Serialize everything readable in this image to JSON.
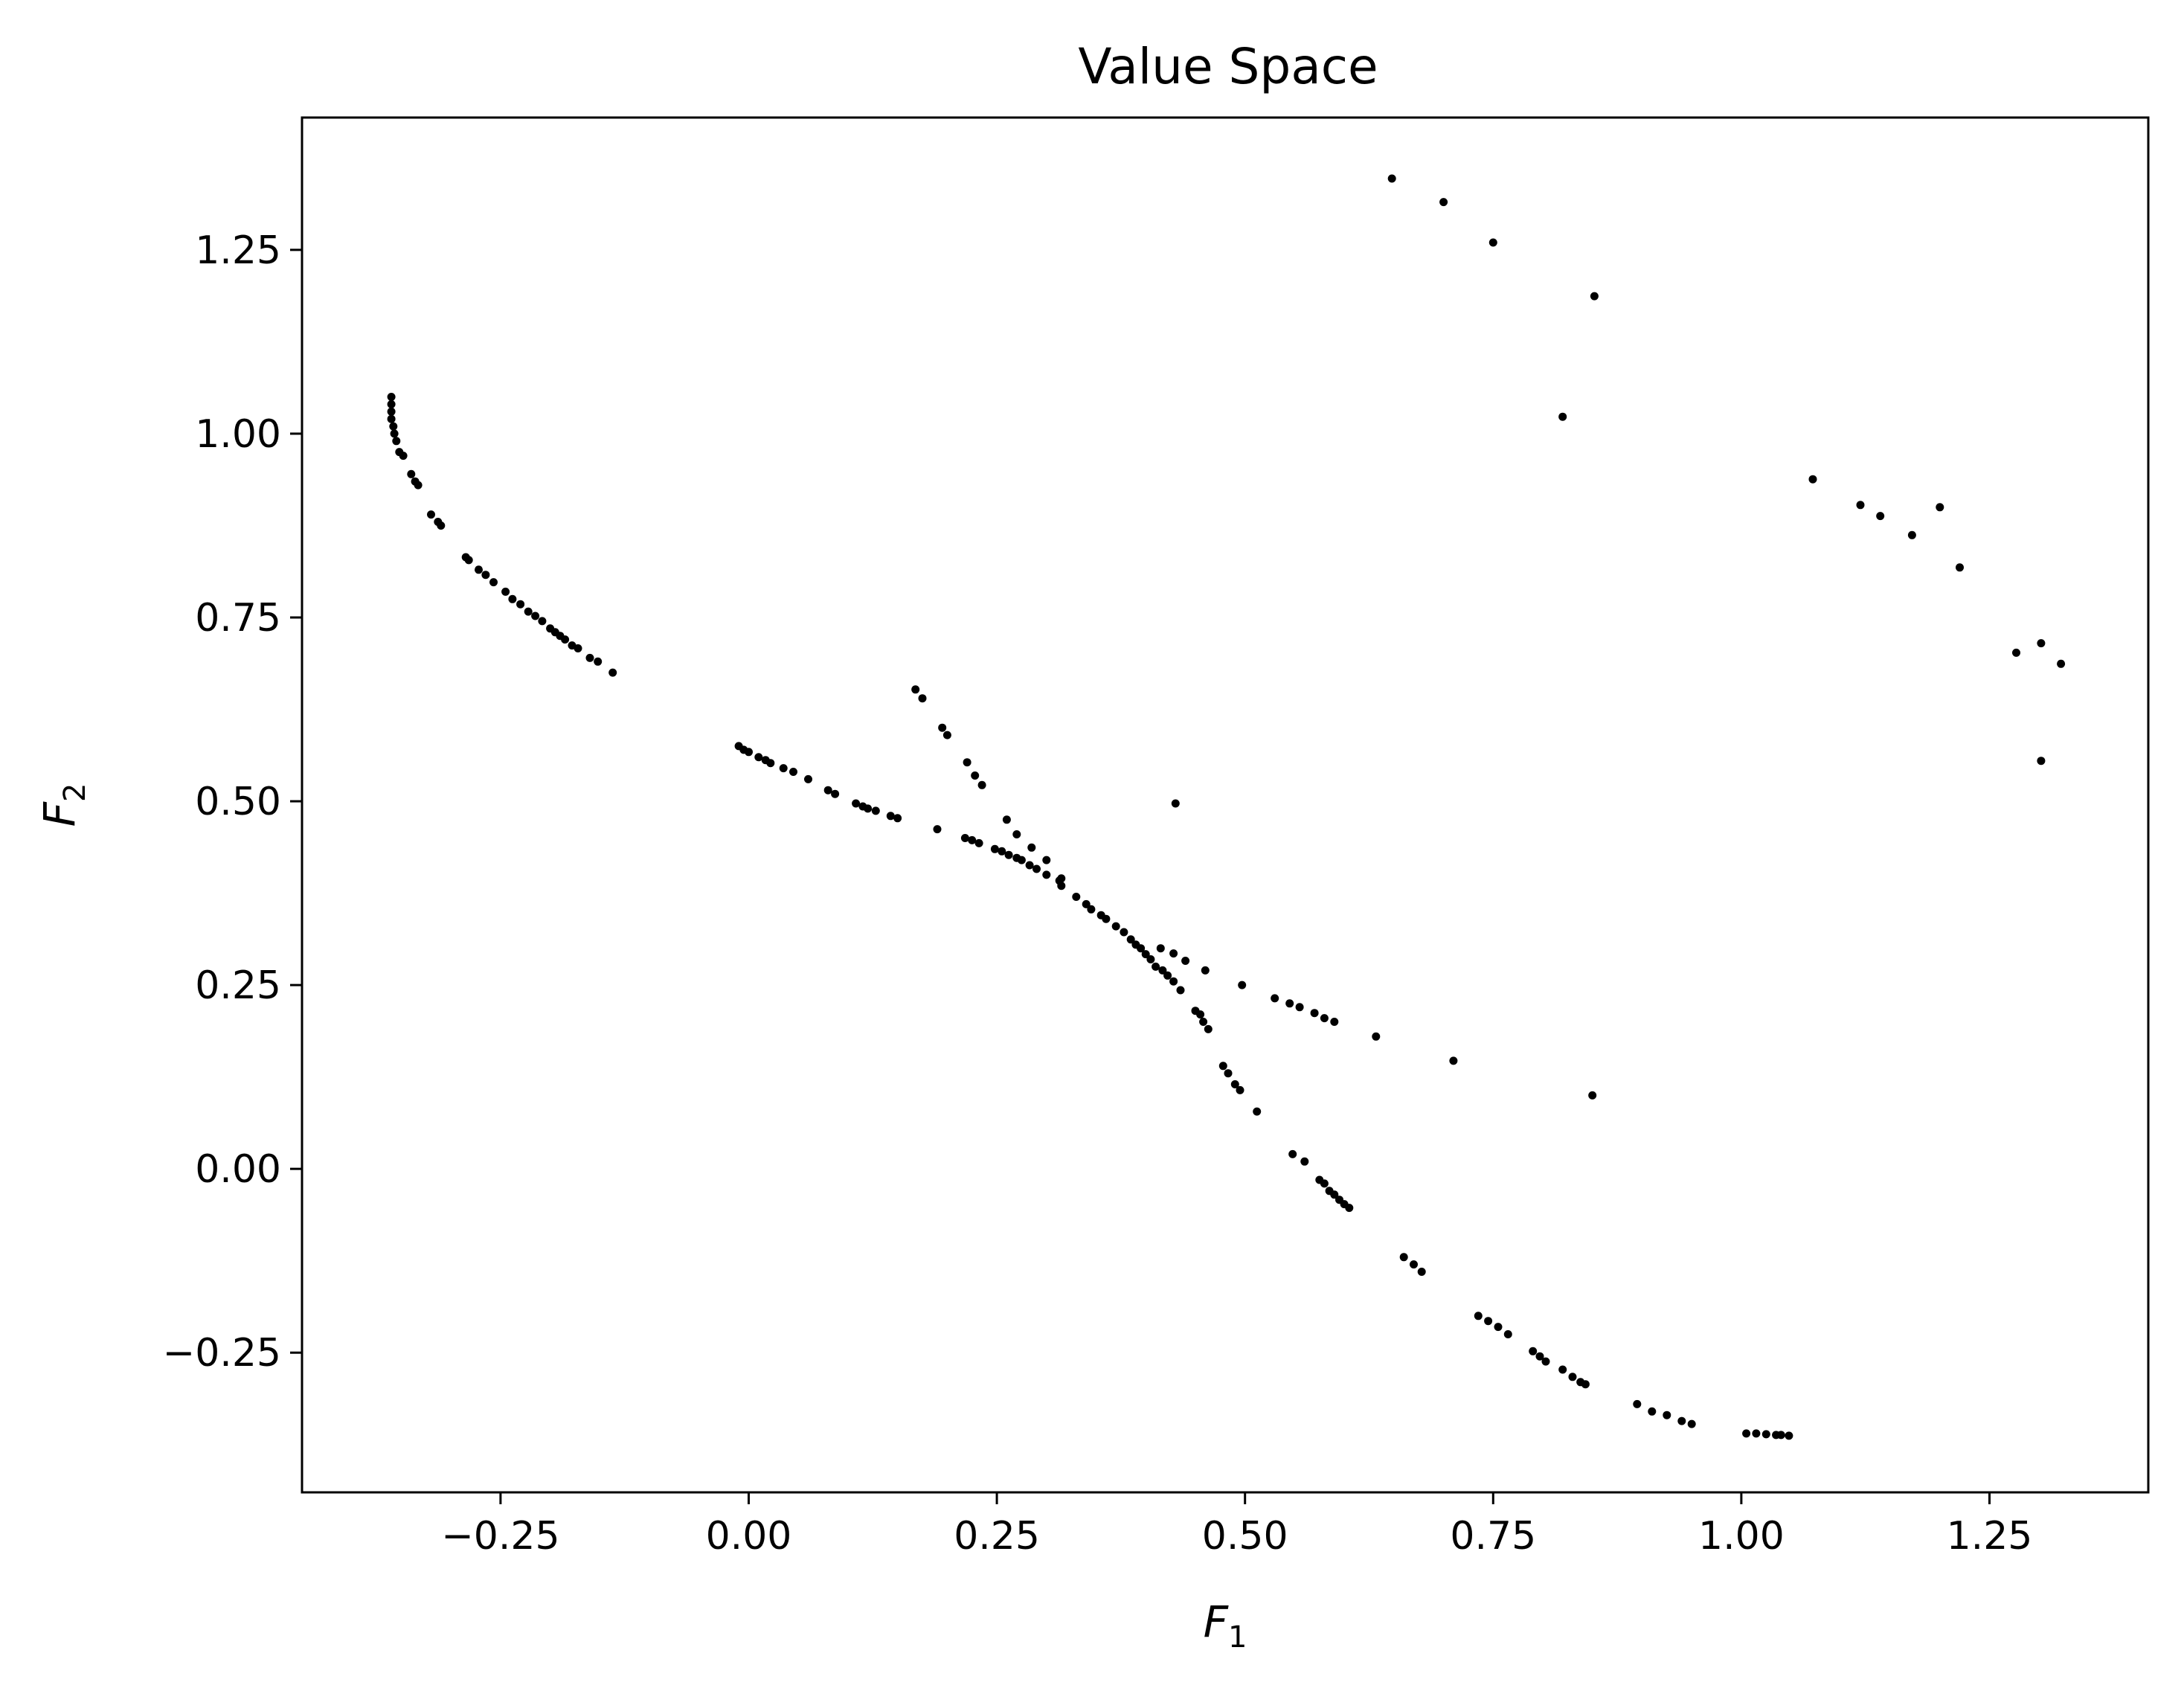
{
  "chart_data": {
    "type": "scatter",
    "title": "Value Space",
    "xlabel": {
      "base": "F",
      "sub": "1"
    },
    "ylabel": {
      "base": "F",
      "sub": "2"
    },
    "xlim": [
      -0.45,
      1.41
    ],
    "ylim": [
      -0.44,
      1.43
    ],
    "xticks": [
      -0.25,
      0.0,
      0.25,
      0.5,
      0.75,
      1.0,
      1.25
    ],
    "xtick_labels": [
      "−0.25",
      "0.00",
      "0.25",
      "0.50",
      "0.75",
      "1.00",
      "1.25"
    ],
    "yticks": [
      -0.25,
      0.0,
      0.25,
      0.5,
      0.75,
      1.0,
      1.25
    ],
    "ytick_labels": [
      "−0.25",
      "0.00",
      "0.25",
      "0.50",
      "0.75",
      "1.00",
      "1.25"
    ],
    "grid": false,
    "marker_color": "#000000",
    "points": [
      [
        -0.36,
        1.05
      ],
      [
        -0.36,
        1.04
      ],
      [
        -0.36,
        1.03
      ],
      [
        -0.36,
        1.02
      ],
      [
        -0.358,
        1.01
      ],
      [
        -0.357,
        1.0
      ],
      [
        -0.355,
        0.99
      ],
      [
        -0.352,
        0.975
      ],
      [
        -0.348,
        0.97
      ],
      [
        -0.34,
        0.945
      ],
      [
        -0.336,
        0.935
      ],
      [
        -0.333,
        0.93
      ],
      [
        -0.32,
        0.89
      ],
      [
        -0.313,
        0.88
      ],
      [
        -0.31,
        0.875
      ],
      [
        -0.285,
        0.832
      ],
      [
        -0.282,
        0.828
      ],
      [
        -0.272,
        0.815
      ],
      [
        -0.265,
        0.808
      ],
      [
        -0.257,
        0.798
      ],
      [
        -0.245,
        0.785
      ],
      [
        -0.238,
        0.775
      ],
      [
        -0.23,
        0.768
      ],
      [
        -0.222,
        0.758
      ],
      [
        -0.215,
        0.752
      ],
      [
        -0.208,
        0.745
      ],
      [
        -0.2,
        0.735
      ],
      [
        -0.195,
        0.73
      ],
      [
        -0.19,
        0.725
      ],
      [
        -0.185,
        0.72
      ],
      [
        -0.178,
        0.712
      ],
      [
        -0.172,
        0.708
      ],
      [
        -0.16,
        0.695
      ],
      [
        -0.152,
        0.69
      ],
      [
        -0.137,
        0.675
      ],
      [
        -0.01,
        0.575
      ],
      [
        -0.005,
        0.57
      ],
      [
        0.0,
        0.567
      ],
      [
        0.01,
        0.56
      ],
      [
        0.017,
        0.556
      ],
      [
        0.022,
        0.552
      ],
      [
        0.035,
        0.545
      ],
      [
        0.045,
        0.54
      ],
      [
        0.06,
        0.53
      ],
      [
        0.08,
        0.515
      ],
      [
        0.087,
        0.51
      ],
      [
        0.108,
        0.497
      ],
      [
        0.115,
        0.493
      ],
      [
        0.12,
        0.49
      ],
      [
        0.128,
        0.487
      ],
      [
        0.143,
        0.48
      ],
      [
        0.15,
        0.477
      ],
      [
        0.19,
        0.462
      ],
      [
        0.218,
        0.45
      ],
      [
        0.225,
        0.447
      ],
      [
        0.232,
        0.443
      ],
      [
        0.248,
        0.435
      ],
      [
        0.255,
        0.432
      ],
      [
        0.262,
        0.427
      ],
      [
        0.27,
        0.423
      ],
      [
        0.275,
        0.42
      ],
      [
        0.283,
        0.413
      ],
      [
        0.29,
        0.408
      ],
      [
        0.3,
        0.4
      ],
      [
        0.313,
        0.392
      ],
      [
        0.315,
        0.385
      ],
      [
        0.33,
        0.37
      ],
      [
        0.34,
        0.36
      ],
      [
        0.345,
        0.353
      ],
      [
        0.355,
        0.345
      ],
      [
        0.36,
        0.34
      ],
      [
        0.37,
        0.33
      ],
      [
        0.378,
        0.322
      ],
      [
        0.385,
        0.312
      ],
      [
        0.39,
        0.305
      ],
      [
        0.395,
        0.3
      ],
      [
        0.4,
        0.292
      ],
      [
        0.405,
        0.285
      ],
      [
        0.41,
        0.275
      ],
      [
        0.417,
        0.27
      ],
      [
        0.422,
        0.263
      ],
      [
        0.428,
        0.255
      ],
      [
        0.435,
        0.243
      ],
      [
        0.45,
        0.215
      ],
      [
        0.455,
        0.21
      ],
      [
        0.458,
        0.2
      ],
      [
        0.463,
        0.19
      ],
      [
        0.478,
        0.14
      ],
      [
        0.483,
        0.13
      ],
      [
        0.49,
        0.115
      ],
      [
        0.495,
        0.107
      ],
      [
        0.512,
        0.078
      ],
      [
        0.548,
        0.02
      ],
      [
        0.56,
        0.01
      ],
      [
        0.575,
        -0.015
      ],
      [
        0.58,
        -0.02
      ],
      [
        0.585,
        -0.03
      ],
      [
        0.59,
        -0.035
      ],
      [
        0.595,
        -0.042
      ],
      [
        0.6,
        -0.048
      ],
      [
        0.605,
        -0.053
      ],
      [
        0.66,
        -0.12
      ],
      [
        0.67,
        -0.13
      ],
      [
        0.678,
        -0.14
      ],
      [
        0.735,
        -0.2
      ],
      [
        0.745,
        -0.207
      ],
      [
        0.755,
        -0.215
      ],
      [
        0.765,
        -0.225
      ],
      [
        0.79,
        -0.248
      ],
      [
        0.797,
        -0.255
      ],
      [
        0.803,
        -0.262
      ],
      [
        0.82,
        -0.273
      ],
      [
        0.83,
        -0.283
      ],
      [
        0.838,
        -0.29
      ],
      [
        0.843,
        -0.293
      ],
      [
        0.895,
        -0.32
      ],
      [
        0.91,
        -0.33
      ],
      [
        0.925,
        -0.335
      ],
      [
        0.94,
        -0.343
      ],
      [
        0.95,
        -0.347
      ],
      [
        1.005,
        -0.36
      ],
      [
        1.015,
        -0.36
      ],
      [
        1.025,
        -0.361
      ],
      [
        1.035,
        -0.362
      ],
      [
        1.04,
        -0.362
      ],
      [
        1.048,
        -0.363
      ],
      [
        0.168,
        0.652
      ],
      [
        0.175,
        0.64
      ],
      [
        0.195,
        0.6
      ],
      [
        0.2,
        0.59
      ],
      [
        0.22,
        0.553
      ],
      [
        0.228,
        0.535
      ],
      [
        0.235,
        0.522
      ],
      [
        0.26,
        0.475
      ],
      [
        0.27,
        0.455
      ],
      [
        0.285,
        0.437
      ],
      [
        0.3,
        0.42
      ],
      [
        0.315,
        0.395
      ],
      [
        0.415,
        0.3
      ],
      [
        0.428,
        0.293
      ],
      [
        0.44,
        0.283
      ],
      [
        0.46,
        0.27
      ],
      [
        0.497,
        0.25
      ],
      [
        0.53,
        0.232
      ],
      [
        0.545,
        0.225
      ],
      [
        0.555,
        0.22
      ],
      [
        0.57,
        0.212
      ],
      [
        0.58,
        0.205
      ],
      [
        0.59,
        0.2
      ],
      [
        0.632,
        0.18
      ],
      [
        0.71,
        0.147
      ],
      [
        0.85,
        0.1
      ],
      [
        0.43,
        0.497
      ],
      [
        0.648,
        1.347
      ],
      [
        0.7,
        1.315
      ],
      [
        0.75,
        1.26
      ],
      [
        0.852,
        1.187
      ],
      [
        0.82,
        1.023
      ],
      [
        1.072,
        0.938
      ],
      [
        1.12,
        0.903
      ],
      [
        1.14,
        0.888
      ],
      [
        1.2,
        0.9
      ],
      [
        1.172,
        0.862
      ],
      [
        1.22,
        0.818
      ],
      [
        1.277,
        0.702
      ],
      [
        1.302,
        0.715
      ],
      [
        1.322,
        0.687
      ],
      [
        1.302,
        0.555
      ]
    ]
  }
}
